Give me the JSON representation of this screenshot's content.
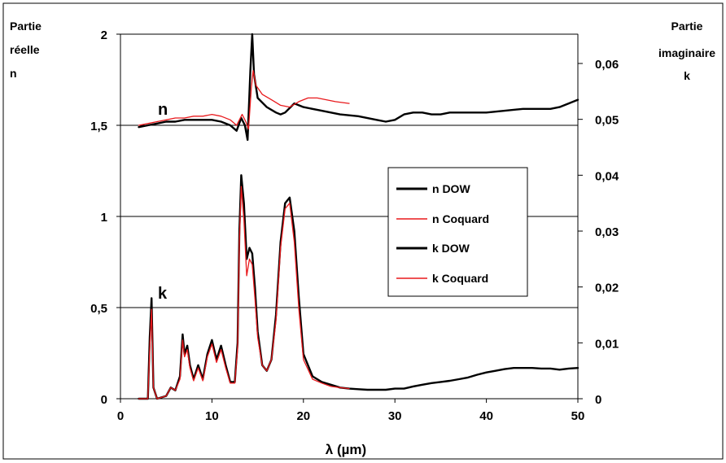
{
  "chart_data": {
    "type": "line",
    "xlabel": "λ (µm)",
    "y_left_label": [
      "Partie",
      "réelle",
      "n"
    ],
    "y_right_label": [
      "Partie",
      "imaginaire",
      "k"
    ],
    "xlim": [
      0,
      50
    ],
    "ylim_left": [
      0,
      2
    ],
    "ylim_right": [
      0,
      0.06
    ],
    "x_ticks": [
      "0",
      "10",
      "20",
      "30",
      "40",
      "50"
    ],
    "y_left_ticks": [
      "0",
      "0,5",
      "1",
      "1,5",
      "2"
    ],
    "y_right_ticks": [
      "0",
      "0,01",
      "0,02",
      "0,03",
      "0,04",
      "0,05",
      "0,06"
    ],
    "gridlines_y_left": [
      0.5,
      1,
      1.5,
      2
    ],
    "annotations": [
      {
        "text": "n",
        "x": 5,
        "y": 1.65
      },
      {
        "text": "k",
        "x": 5,
        "y": 0.6
      }
    ],
    "legend": {
      "position": "center-right",
      "entries": [
        {
          "name": "n DOW",
          "color": "#000000"
        },
        {
          "name": "n Coquard",
          "color": "#e8191c"
        },
        {
          "name": "k DOW",
          "color": "#000000"
        },
        {
          "name": "k Coquard",
          "color": "#e8191c"
        }
      ]
    },
    "series": [
      {
        "name": "n DOW",
        "axis": "left",
        "color": "#000000",
        "points": [
          [
            2,
            1.49
          ],
          [
            3,
            1.5
          ],
          [
            4,
            1.51
          ],
          [
            5,
            1.52
          ],
          [
            6,
            1.52
          ],
          [
            7,
            1.53
          ],
          [
            8,
            1.53
          ],
          [
            9,
            1.53
          ],
          [
            10,
            1.53
          ],
          [
            11,
            1.52
          ],
          [
            12,
            1.5
          ],
          [
            12.7,
            1.47
          ],
          [
            13.2,
            1.54
          ],
          [
            13.6,
            1.5
          ],
          [
            13.9,
            1.42
          ],
          [
            14.2,
            1.8
          ],
          [
            14.4,
            2.0
          ],
          [
            14.6,
            1.78
          ],
          [
            15,
            1.65
          ],
          [
            16,
            1.6
          ],
          [
            17,
            1.57
          ],
          [
            17.5,
            1.56
          ],
          [
            18,
            1.57
          ],
          [
            19,
            1.62
          ],
          [
            20,
            1.6
          ],
          [
            22,
            1.58
          ],
          [
            24,
            1.56
          ],
          [
            26,
            1.55
          ],
          [
            28,
            1.53
          ],
          [
            29,
            1.52
          ],
          [
            30,
            1.53
          ],
          [
            31,
            1.56
          ],
          [
            32,
            1.57
          ],
          [
            33,
            1.57
          ],
          [
            34,
            1.56
          ],
          [
            35,
            1.56
          ],
          [
            36,
            1.57
          ],
          [
            38,
            1.57
          ],
          [
            40,
            1.57
          ],
          [
            42,
            1.58
          ],
          [
            44,
            1.59
          ],
          [
            46,
            1.59
          ],
          [
            47,
            1.59
          ],
          [
            48,
            1.6
          ],
          [
            49,
            1.62
          ],
          [
            50,
            1.64
          ]
        ]
      },
      {
        "name": "n Coquard",
        "axis": "left",
        "color": "#e8191c",
        "points": [
          [
            2,
            1.5
          ],
          [
            3,
            1.51
          ],
          [
            4,
            1.52
          ],
          [
            5,
            1.53
          ],
          [
            6,
            1.54
          ],
          [
            7,
            1.54
          ],
          [
            8,
            1.55
          ],
          [
            9,
            1.55
          ],
          [
            10,
            1.56
          ],
          [
            11,
            1.55
          ],
          [
            12,
            1.53
          ],
          [
            12.7,
            1.5
          ],
          [
            13.3,
            1.56
          ],
          [
            13.7,
            1.52
          ],
          [
            14,
            1.48
          ],
          [
            14.3,
            1.7
          ],
          [
            14.5,
            1.8
          ],
          [
            14.8,
            1.72
          ],
          [
            15.5,
            1.67
          ],
          [
            16.5,
            1.64
          ],
          [
            17.5,
            1.61
          ],
          [
            18.5,
            1.6
          ],
          [
            19.5,
            1.63
          ],
          [
            20.5,
            1.65
          ],
          [
            21.5,
            1.65
          ],
          [
            22.5,
            1.64
          ],
          [
            23.5,
            1.63
          ],
          [
            25,
            1.62
          ]
        ]
      },
      {
        "name": "k DOW",
        "axis": "right",
        "color": "#000000",
        "points": [
          [
            2,
            0.0
          ],
          [
            3,
            0.0
          ],
          [
            3.2,
            0.011
          ],
          [
            3.4,
            0.018
          ],
          [
            3.6,
            0.002
          ],
          [
            4,
            0.0
          ],
          [
            5,
            0.0005
          ],
          [
            5.5,
            0.002
          ],
          [
            6,
            0.0015
          ],
          [
            6.5,
            0.004
          ],
          [
            6.8,
            0.0115
          ],
          [
            7,
            0.008
          ],
          [
            7.3,
            0.0095
          ],
          [
            7.6,
            0.006
          ],
          [
            8,
            0.0035
          ],
          [
            8.5,
            0.006
          ],
          [
            9,
            0.0035
          ],
          [
            9.5,
            0.008
          ],
          [
            10,
            0.0105
          ],
          [
            10.5,
            0.007
          ],
          [
            11,
            0.0095
          ],
          [
            11.5,
            0.006
          ],
          [
            12,
            0.003
          ],
          [
            12.5,
            0.003
          ],
          [
            12.8,
            0.01
          ],
          [
            13,
            0.03
          ],
          [
            13.2,
            0.04
          ],
          [
            13.5,
            0.035
          ],
          [
            13.8,
            0.025
          ],
          [
            14.1,
            0.027
          ],
          [
            14.4,
            0.026
          ],
          [
            14.7,
            0.02
          ],
          [
            15,
            0.012
          ],
          [
            15.5,
            0.006
          ],
          [
            16,
            0.005
          ],
          [
            16.5,
            0.007
          ],
          [
            17,
            0.015
          ],
          [
            17.5,
            0.028
          ],
          [
            18,
            0.035
          ],
          [
            18.5,
            0.036
          ],
          [
            19,
            0.03
          ],
          [
            19.5,
            0.018
          ],
          [
            20,
            0.008
          ],
          [
            21,
            0.004
          ],
          [
            22,
            0.003
          ],
          [
            23,
            0.0025
          ],
          [
            24,
            0.002
          ],
          [
            25,
            0.0018
          ],
          [
            26,
            0.0017
          ],
          [
            27,
            0.0016
          ],
          [
            28,
            0.0016
          ],
          [
            29,
            0.0016
          ],
          [
            30,
            0.0018
          ],
          [
            31,
            0.0018
          ],
          [
            32,
            0.0022
          ],
          [
            33,
            0.0025
          ],
          [
            34,
            0.0028
          ],
          [
            35,
            0.003
          ],
          [
            36,
            0.0032
          ],
          [
            37,
            0.0035
          ],
          [
            38,
            0.0038
          ],
          [
            39,
            0.0043
          ],
          [
            40,
            0.0047
          ],
          [
            41,
            0.005
          ],
          [
            42,
            0.0053
          ],
          [
            43,
            0.0055
          ],
          [
            44,
            0.0055
          ],
          [
            45,
            0.0055
          ],
          [
            46,
            0.0054
          ],
          [
            47,
            0.0054
          ],
          [
            48,
            0.0052
          ],
          [
            49,
            0.0054
          ],
          [
            50,
            0.0055
          ]
        ]
      },
      {
        "name": "k Coquard",
        "axis": "right",
        "color": "#e8191c",
        "points": [
          [
            2,
            0.0
          ],
          [
            3,
            0.0
          ],
          [
            3.2,
            0.009
          ],
          [
            3.4,
            0.016
          ],
          [
            3.6,
            0.002
          ],
          [
            4,
            0.0
          ],
          [
            5,
            0.0005
          ],
          [
            5.5,
            0.002
          ],
          [
            6,
            0.0015
          ],
          [
            6.5,
            0.0035
          ],
          [
            6.8,
            0.0105
          ],
          [
            7,
            0.0075
          ],
          [
            7.3,
            0.0088
          ],
          [
            7.6,
            0.0055
          ],
          [
            8,
            0.0032
          ],
          [
            8.5,
            0.0055
          ],
          [
            9,
            0.0032
          ],
          [
            9.5,
            0.0075
          ],
          [
            10,
            0.0098
          ],
          [
            10.5,
            0.0065
          ],
          [
            11,
            0.0088
          ],
          [
            11.5,
            0.0055
          ],
          [
            12,
            0.0028
          ],
          [
            12.5,
            0.0028
          ],
          [
            12.8,
            0.009
          ],
          [
            13,
            0.028
          ],
          [
            13.2,
            0.038
          ],
          [
            13.5,
            0.032
          ],
          [
            13.8,
            0.022
          ],
          [
            14.1,
            0.025
          ],
          [
            14.4,
            0.024
          ],
          [
            14.7,
            0.018
          ],
          [
            15,
            0.011
          ],
          [
            15.5,
            0.006
          ],
          [
            16,
            0.005
          ],
          [
            16.5,
            0.007
          ],
          [
            17,
            0.014
          ],
          [
            17.5,
            0.027
          ],
          [
            18,
            0.034
          ],
          [
            18.5,
            0.035
          ],
          [
            19,
            0.028
          ],
          [
            19.5,
            0.016
          ],
          [
            20,
            0.007
          ],
          [
            21,
            0.0035
          ],
          [
            22,
            0.0028
          ],
          [
            23,
            0.0022
          ],
          [
            24,
            0.002
          ],
          [
            25,
            0.0018
          ]
        ]
      }
    ]
  }
}
